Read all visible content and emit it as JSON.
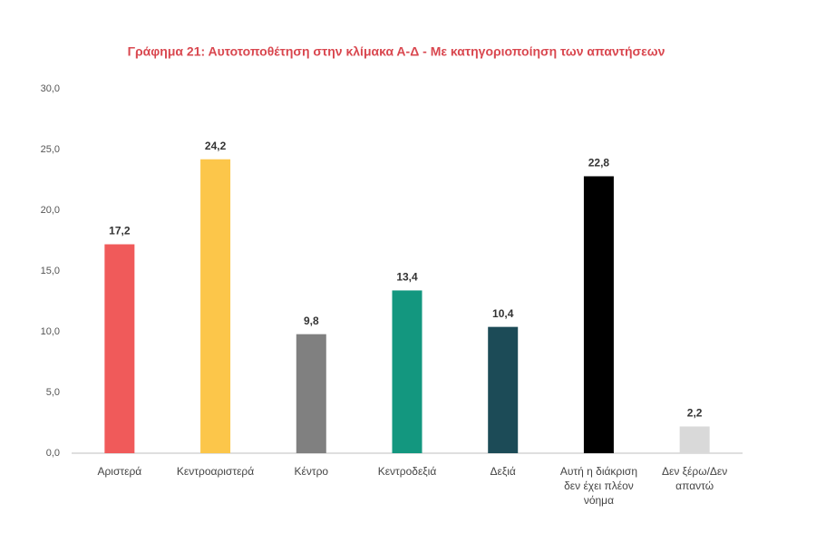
{
  "chart_data": {
    "type": "bar",
    "title": "Γράφημα 21: Αυτοτοποθέτηση στην κλίμακα Α-Δ - Με κατηγοριοποίηση των απαντήσεων",
    "categories": [
      "Αριστερά",
      "Κεντροαριστερά",
      "Κέντρο",
      "Κεντροδεξιά",
      "Δεξιά",
      "Αυτή η διάκριση δεν έχει πλέον νόημα",
      "Δεν ξέρω/Δεν απαντώ"
    ],
    "values": [
      17.2,
      24.2,
      9.8,
      13.4,
      10.4,
      22.8,
      2.2
    ],
    "value_labels": [
      "17,2",
      "24,2",
      "9,8",
      "13,4",
      "10,4",
      "22,8",
      "2,2"
    ],
    "colors": [
      "#f05a5a",
      "#fcc64a",
      "#808080",
      "#13977f",
      "#1c4b57",
      "#000000",
      "#d9d9d9"
    ],
    "ylim": [
      0,
      30
    ],
    "yticks": [
      {
        "value": 0,
        "label": "0,0"
      },
      {
        "value": 5,
        "label": "5,0"
      },
      {
        "value": 10,
        "label": "10,0"
      },
      {
        "value": 15,
        "label": "15,0"
      },
      {
        "value": 20,
        "label": "20,0"
      },
      {
        "value": 25,
        "label": "25,0"
      },
      {
        "value": 30,
        "label": "30,0"
      }
    ],
    "grid": false
  }
}
